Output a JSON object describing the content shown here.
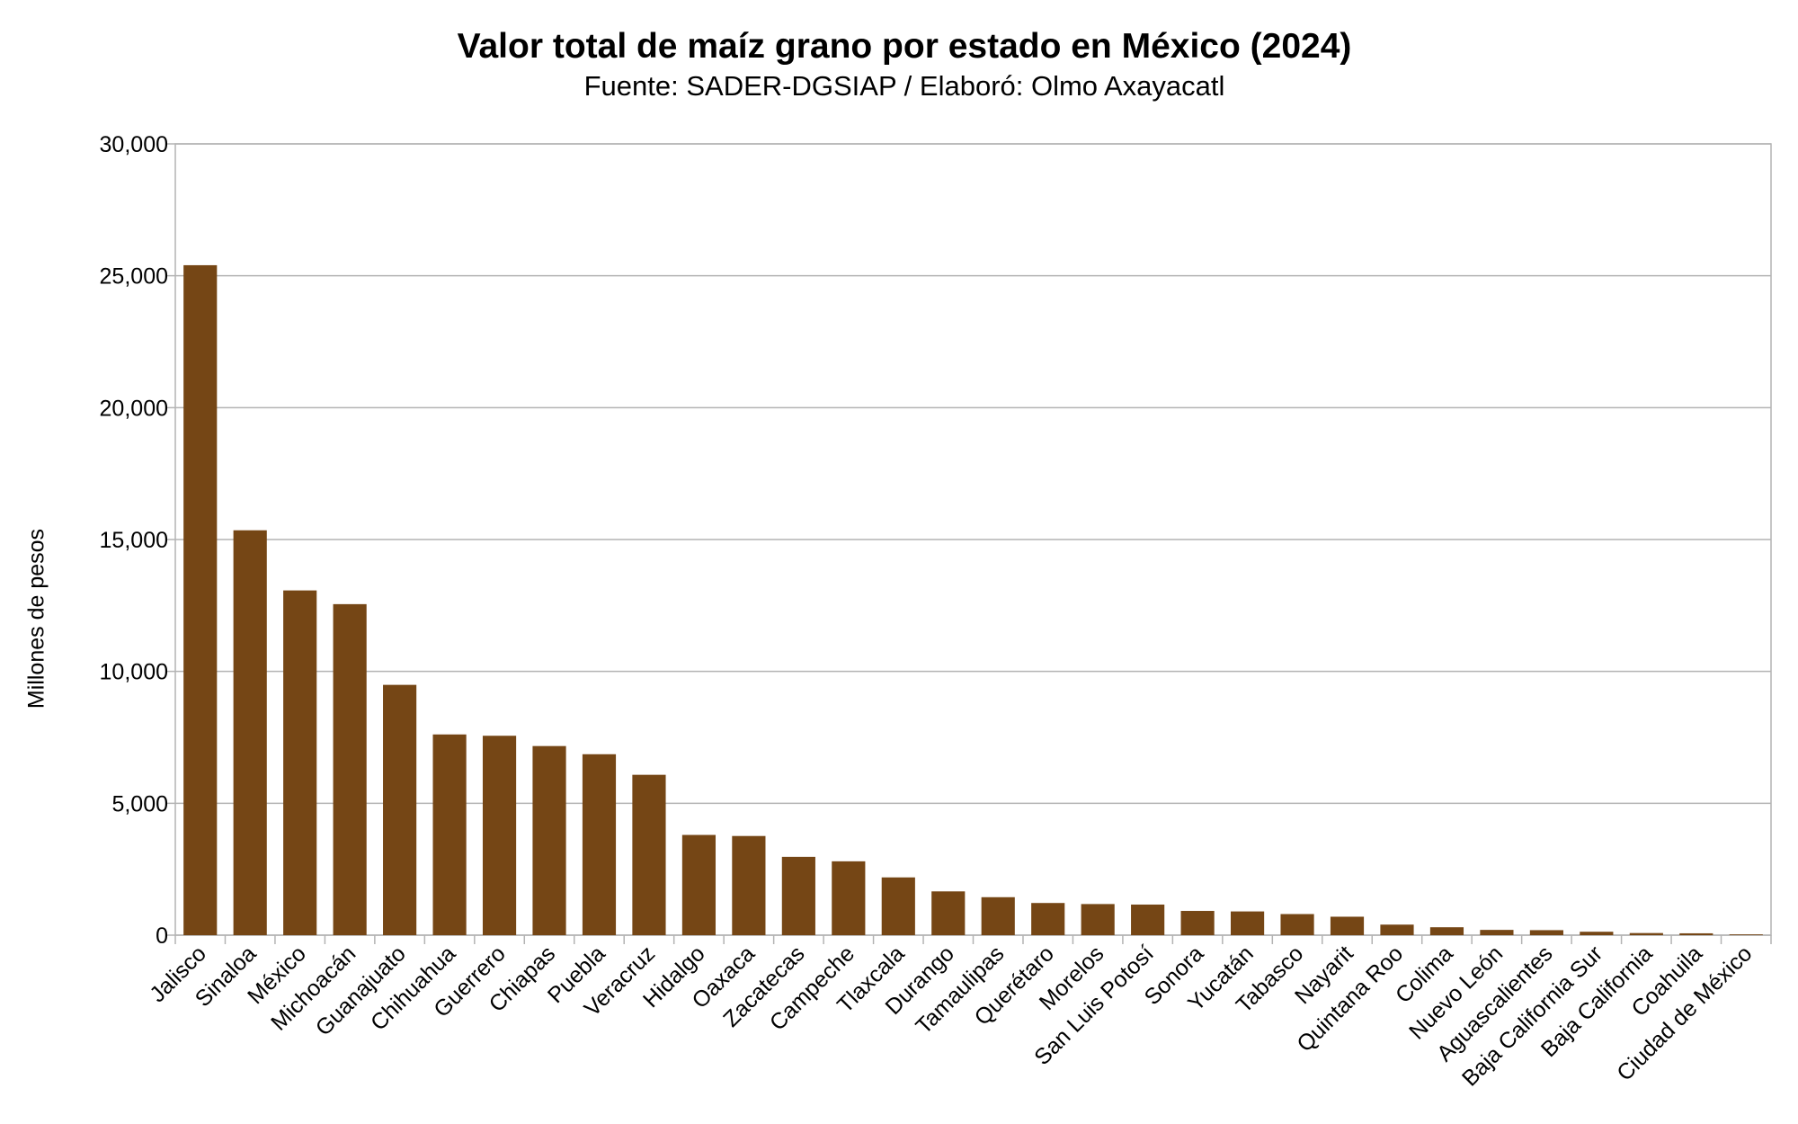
{
  "chart_data": {
    "type": "bar",
    "title": "Valor total de maíz grano por estado en México (2024)",
    "subtitle": "Fuente: SADER-DGSIAP / Elaboró: Olmo Axayacatl",
    "xlabel": "",
    "ylabel": "Millones de pesos",
    "ylim": [
      0,
      30000
    ],
    "yticks": [
      "0",
      "5,000",
      "10,000",
      "15,000",
      "20,000",
      "25,000",
      "30,000"
    ],
    "ytick_values": [
      0,
      5000,
      10000,
      15000,
      20000,
      25000,
      30000
    ],
    "grid": true,
    "bar_color": "#754615",
    "categories": [
      "Jalisco",
      "Sinaloa",
      "México",
      "Michoacán",
      "Guanajuato",
      "Chihuahua",
      "Guerrero",
      "Chiapas",
      "Puebla",
      "Veracruz",
      "Hidalgo",
      "Oaxaca",
      "Zacatecas",
      "Campeche",
      "Tlaxcala",
      "Durango",
      "Tamaulipas",
      "Querétaro",
      "Morelos",
      "San Luis Potosí",
      "Sonora",
      "Yucatán",
      "Tabasco",
      "Nayarit",
      "Quintana Roo",
      "Colima",
      "Nuevo León",
      "Aguascalientes",
      "Baja California Sur",
      "Baja California",
      "Coahuila",
      "Ciudad de México"
    ],
    "values": [
      25400,
      15350,
      13070,
      12550,
      9490,
      7610,
      7560,
      7170,
      6860,
      6080,
      3800,
      3760,
      2970,
      2800,
      2190,
      1660,
      1440,
      1220,
      1180,
      1160,
      920,
      900,
      800,
      700,
      400,
      300,
      200,
      190,
      130,
      80,
      70,
      30
    ]
  }
}
